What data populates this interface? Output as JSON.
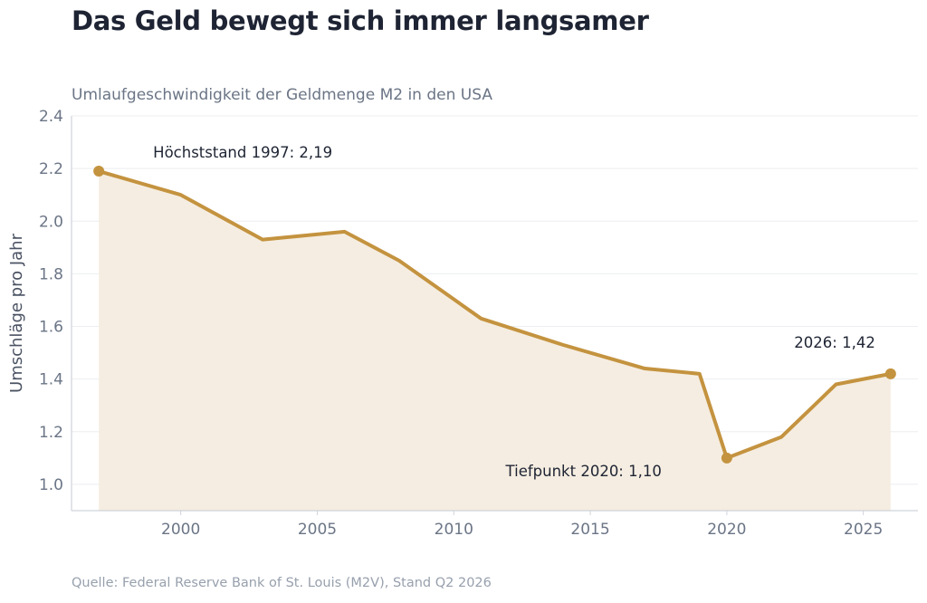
{
  "header": {
    "title": "Das Geld bewegt sich immer langsamer",
    "subtitle": "Umlaufgeschwindigkeit der Geldmenge M2 in den USA"
  },
  "footer": {
    "source": "Quelle: Federal Reserve Bank of St. Louis (M2V), Stand Q2 2026"
  },
  "colors": {
    "line": "#c4933f",
    "area": "#f5ede1",
    "grid": "#eceef1",
    "axis": "#cfd3da"
  },
  "chart_data": {
    "type": "area",
    "title": "Das Geld bewegt sich immer langsamer",
    "subtitle": "Umlaufgeschwindigkeit der Geldmenge M2 in den USA",
    "xlabel": "",
    "ylabel": "Umschläge pro Jahr",
    "xlim": [
      1996,
      2027
    ],
    "ylim": [
      0.9,
      2.4
    ],
    "x_ticks": [
      2000,
      2005,
      2010,
      2015,
      2020,
      2025
    ],
    "y_ticks": [
      1.0,
      1.2,
      1.4,
      1.6,
      1.8,
      2.0,
      2.2,
      2.4
    ],
    "y_tick_labels": [
      "1.0",
      "1.2",
      "1.4",
      "1.6",
      "1.8",
      "2.0",
      "2.2",
      "2.4"
    ],
    "grid": "horizontal",
    "legend": "none",
    "series": [
      {
        "x": [
          1997,
          2000,
          2003,
          2006,
          2008,
          2011,
          2014,
          2017,
          2019,
          2020,
          2022,
          2024,
          2026
        ],
        "y": [
          2.19,
          2.1,
          1.93,
          1.96,
          1.85,
          1.63,
          1.53,
          1.44,
          1.42,
          1.1,
          1.18,
          1.38,
          1.42
        ]
      }
    ],
    "markers": [
      {
        "x": 1997,
        "y": 2.19
      },
      {
        "x": 2020,
        "y": 1.1
      },
      {
        "x": 2026,
        "y": 1.42
      }
    ],
    "annotations": [
      {
        "text": "Höchststand 1997: 2,19",
        "x": 1997,
        "y": 2.19,
        "anchor": "upper-right"
      },
      {
        "text": "Tiefpunkt 2020: 1,10",
        "x": 2020,
        "y": 1.1,
        "anchor": "left"
      },
      {
        "text": "2026: 1,42",
        "x": 2026,
        "y": 1.42,
        "anchor": "upper-left"
      }
    ]
  }
}
